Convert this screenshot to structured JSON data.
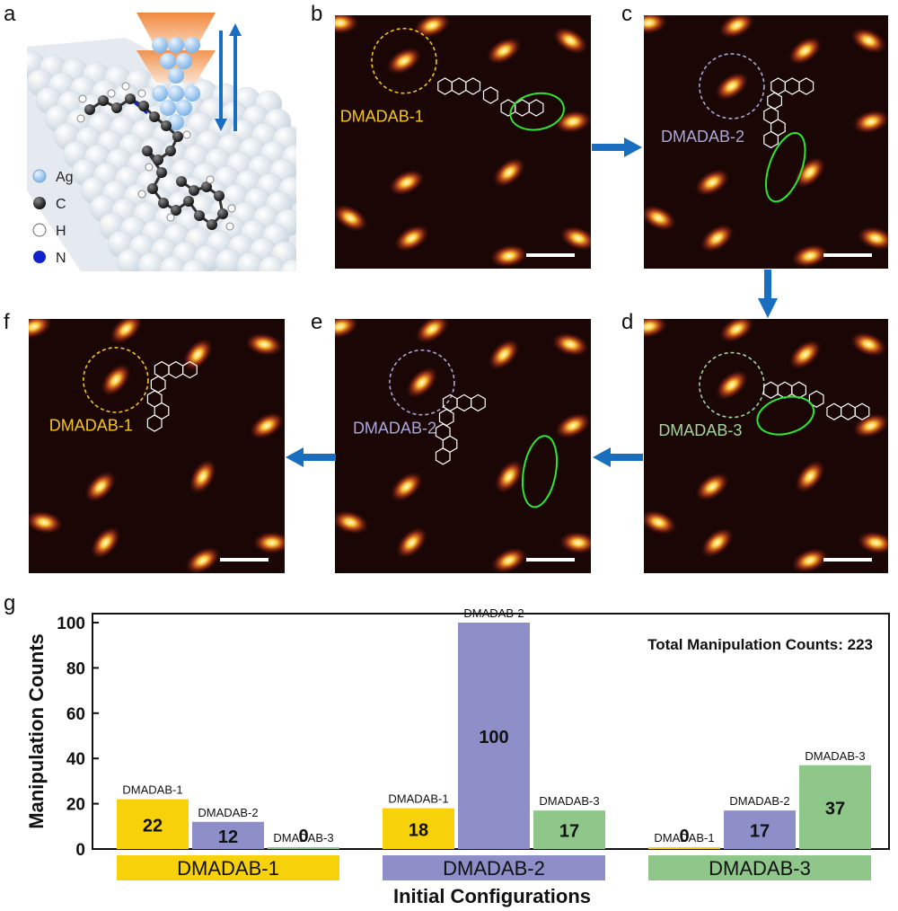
{
  "panels": {
    "a": {
      "label": "a",
      "legend": [
        "Ag",
        "C",
        "H",
        "N"
      ]
    },
    "b": {
      "label": "b",
      "molecule": "DMADAB-1",
      "color": "#f5c518"
    },
    "c": {
      "label": "c",
      "molecule": "DMADAB-2",
      "color": "#a9a7dc"
    },
    "d": {
      "label": "d",
      "molecule": "DMADAB-3",
      "color": "#a6d49a"
    },
    "e": {
      "label": "e",
      "molecule": "DMADAB-2",
      "color": "#a9a7dc"
    },
    "f": {
      "label": "f",
      "molecule": "DMADAB-1",
      "color": "#f5c518"
    },
    "g": {
      "label": "g"
    }
  },
  "chart_data": {
    "type": "bar",
    "ylabel": "Manipulation Counts",
    "xlabel": "Initial Configurations",
    "ylim": [
      0,
      105
    ],
    "yticks": [
      0,
      20,
      40,
      60,
      80,
      100
    ],
    "annotation": "Total Manipulation Counts: 223",
    "categories": [
      "DMADAB-1",
      "DMADAB-2",
      "DMADAB-3"
    ],
    "category_colors": [
      "#f7d10a",
      "#8e8ec8",
      "#8fc78a"
    ],
    "series": [
      {
        "name": "DMADAB-1",
        "color": "#f7d10a",
        "values": [
          22,
          18,
          0
        ]
      },
      {
        "name": "DMADAB-2",
        "color": "#8e8ec8",
        "values": [
          12,
          100,
          17
        ]
      },
      {
        "name": "DMADAB-3",
        "color": "#8fc78a",
        "values": [
          0,
          17,
          37
        ]
      }
    ]
  }
}
